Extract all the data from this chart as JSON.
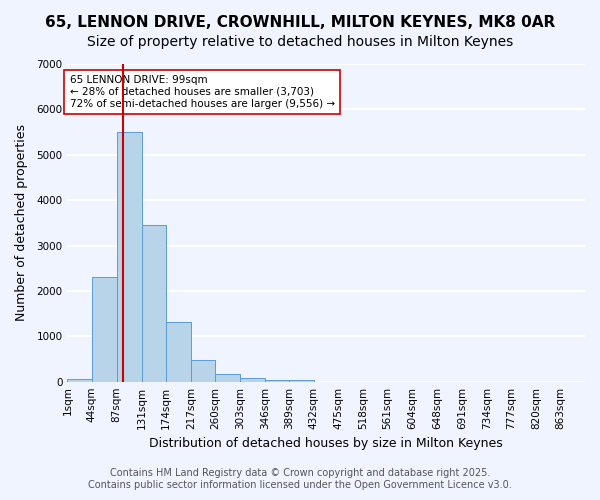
{
  "title1": "65, LENNON DRIVE, CROWNHILL, MILTON KEYNES, MK8 0AR",
  "title2": "Size of property relative to detached houses in Milton Keynes",
  "xlabel": "Distribution of detached houses by size in Milton Keynes",
  "ylabel": "Number of detached properties",
  "bar_color": "#b8d4e8",
  "bar_edge_color": "#5b9bd5",
  "background_color": "#f0f4ff",
  "grid_color": "#ffffff",
  "bins": [
    1,
    44,
    87,
    131,
    174,
    217,
    260,
    303,
    346,
    389,
    432,
    475,
    518,
    561,
    604,
    648,
    691,
    734,
    777,
    820,
    863
  ],
  "counts": [
    70,
    2300,
    5500,
    3450,
    1320,
    480,
    175,
    80,
    45,
    30,
    0,
    0,
    0,
    0,
    0,
    0,
    0,
    0,
    0,
    0
  ],
  "property_size": 99,
  "red_line_color": "#cc0000",
  "annotation_text": "65 LENNON DRIVE: 99sqm\n← 28% of detached houses are smaller (3,703)\n72% of semi-detached houses are larger (9,556) →",
  "annotation_box_color": "#ffffff",
  "annotation_border_color": "#cc0000",
  "ylim": [
    0,
    7000
  ],
  "yticks": [
    0,
    1000,
    2000,
    3000,
    4000,
    5000,
    6000,
    7000
  ],
  "tick_labels": [
    "1sqm",
    "44sqm",
    "87sqm",
    "131sqm",
    "174sqm",
    "217sqm",
    "260sqm",
    "303sqm",
    "346sqm",
    "389sqm",
    "432sqm",
    "475sqm",
    "518sqm",
    "561sqm",
    "604sqm",
    "648sqm",
    "691sqm",
    "734sqm",
    "777sqm",
    "820sqm",
    "863sqm"
  ],
  "footnote1": "Contains HM Land Registry data © Crown copyright and database right 2025.",
  "footnote2": "Contains public sector information licensed under the Open Government Licence v3.0.",
  "title1_fontsize": 11,
  "title2_fontsize": 10,
  "xlabel_fontsize": 9,
  "ylabel_fontsize": 9,
  "tick_fontsize": 7.5,
  "footnote_fontsize": 7
}
